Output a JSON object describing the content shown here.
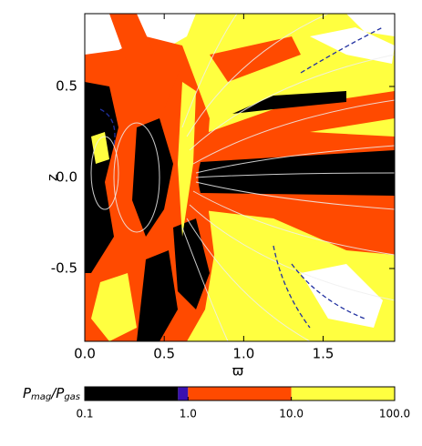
{
  "chart_data": {
    "type": "field",
    "xlabel": "ϖ",
    "ylabel": "z",
    "xlim": [
      0,
      1.95
    ],
    "ylim": [
      -0.9,
      0.9
    ],
    "xticks": [
      {
        "value": 0,
        "label": "0.0"
      },
      0.5,
      {
        "value": 1,
        "label": "1.0"
      },
      1.5
    ],
    "yticks": [
      -0.5,
      {
        "value": 0,
        "label": "0.0"
      },
      0.5
    ],
    "colorbar": {
      "label": [
        "P",
        "mag",
        "/P",
        "gas"
      ],
      "log": true,
      "lim": [
        0.1,
        100
      ],
      "ticks": [
        0.1,
        {
          "value": 1,
          "label": "1.0"
        },
        {
          "value": 10,
          "label": "10.0"
        },
        {
          "value": 100,
          "label": "100.0"
        }
      ],
      "bounds": [
        0.1,
        0.8,
        1,
        10,
        100
      ],
      "colors": [
        "#000000",
        "#3a10b0",
        "#ff4a00",
        "#ffff40"
      ]
    }
  }
}
